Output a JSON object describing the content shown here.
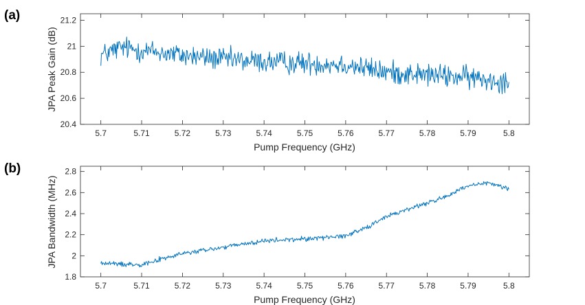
{
  "chart_data": [
    {
      "type": "line",
      "panel_label": "(a)",
      "xlabel": "Pump Frequency (GHz)",
      "ylabel": "JPA Peak Gain (dB)",
      "xlim": [
        5.695,
        5.805
      ],
      "ylim": [
        20.4,
        21.25
      ],
      "xticks": [
        5.7,
        5.71,
        5.72,
        5.73,
        5.74,
        5.75,
        5.76,
        5.77,
        5.78,
        5.79,
        5.8
      ],
      "yticks": [
        20.4,
        20.6,
        20.8,
        21,
        21.2
      ],
      "color": "#0072BD",
      "x_range": [
        5.7,
        5.8
      ],
      "trend_x": [
        5.7,
        5.705,
        5.71,
        5.72,
        5.73,
        5.74,
        5.75,
        5.76,
        5.77,
        5.78,
        5.79,
        5.8
      ],
      "trend_y": [
        20.93,
        20.99,
        20.97,
        20.93,
        20.9,
        20.88,
        20.87,
        20.86,
        20.8,
        20.78,
        20.76,
        20.73
      ],
      "noise_amplitude": 0.13,
      "y_clip": [
        20.43,
        21.17
      ]
    },
    {
      "type": "line",
      "panel_label": "(b)",
      "xlabel": "Pump Frequency (GHz)",
      "ylabel": "JPA Bandwidth (MHz)",
      "xlim": [
        5.695,
        5.805
      ],
      "ylim": [
        1.8,
        2.85
      ],
      "xticks": [
        5.7,
        5.71,
        5.72,
        5.73,
        5.74,
        5.75,
        5.76,
        5.77,
        5.78,
        5.79,
        5.8
      ],
      "yticks": [
        1.8,
        2,
        2.2,
        2.4,
        2.6,
        2.8
      ],
      "color": "#0072BD",
      "x_range": [
        5.7,
        5.8
      ],
      "trend_x": [
        5.7,
        5.705,
        5.71,
        5.715,
        5.72,
        5.73,
        5.74,
        5.75,
        5.76,
        5.765,
        5.77,
        5.775,
        5.78,
        5.785,
        5.79,
        5.795,
        5.8
      ],
      "trend_y": [
        1.93,
        1.92,
        1.92,
        1.97,
        2.02,
        2.08,
        2.14,
        2.16,
        2.19,
        2.27,
        2.37,
        2.44,
        2.5,
        2.57,
        2.66,
        2.69,
        2.64
      ],
      "noise_amplitude": 0.035,
      "y_clip": [
        1.86,
        2.8
      ]
    }
  ]
}
